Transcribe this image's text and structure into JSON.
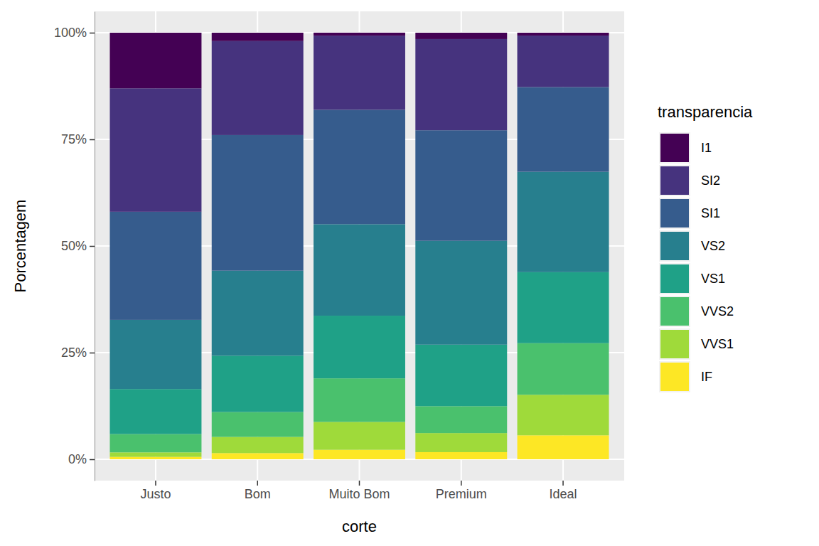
{
  "chart_data": {
    "type": "bar",
    "stacked": true,
    "grid": true,
    "legend": "right",
    "x_label": "corte",
    "y_label": "Porcentagem",
    "legend_title": "transparencia",
    "categories": [
      "Justo",
      "Bom",
      "Muito Bom",
      "Premium",
      "Ideal"
    ],
    "ylim": [
      -5,
      105
    ],
    "yticks": [
      {
        "value": 0,
        "label": "0%"
      },
      {
        "value": 25,
        "label": "25%"
      },
      {
        "value": 50,
        "label": "50%"
      },
      {
        "value": 75,
        "label": "75%"
      },
      {
        "value": 100,
        "label": "100%"
      }
    ],
    "series": [
      {
        "name": "I1",
        "color": "#440154",
        "values": [
          13.04,
          1.96,
          0.7,
          1.49,
          0.68
        ]
      },
      {
        "name": "SI2",
        "color": "#46337E",
        "values": [
          28.94,
          22.03,
          17.38,
          21.38,
          12.06
        ]
      },
      {
        "name": "SI1",
        "color": "#365C8D",
        "values": [
          25.34,
          31.8,
          26.82,
          25.92,
          19.87
        ]
      },
      {
        "name": "VS2",
        "color": "#277F8E",
        "values": [
          16.21,
          19.93,
          21.45,
          24.34,
          23.53
        ]
      },
      {
        "name": "VS1",
        "color": "#1FA187",
        "values": [
          10.56,
          13.21,
          14.69,
          14.42,
          16.65
        ]
      },
      {
        "name": "VVS2",
        "color": "#4AC16D",
        "values": [
          4.29,
          5.83,
          10.22,
          6.31,
          12.09
        ]
      },
      {
        "name": "VVS1",
        "color": "#9FDA3A",
        "values": [
          1.06,
          3.79,
          6.53,
          4.47,
          9.5
        ]
      },
      {
        "name": "IF",
        "color": "#FDE725",
        "values": [
          0.56,
          1.45,
          2.22,
          1.67,
          5.62
        ]
      }
    ]
  }
}
